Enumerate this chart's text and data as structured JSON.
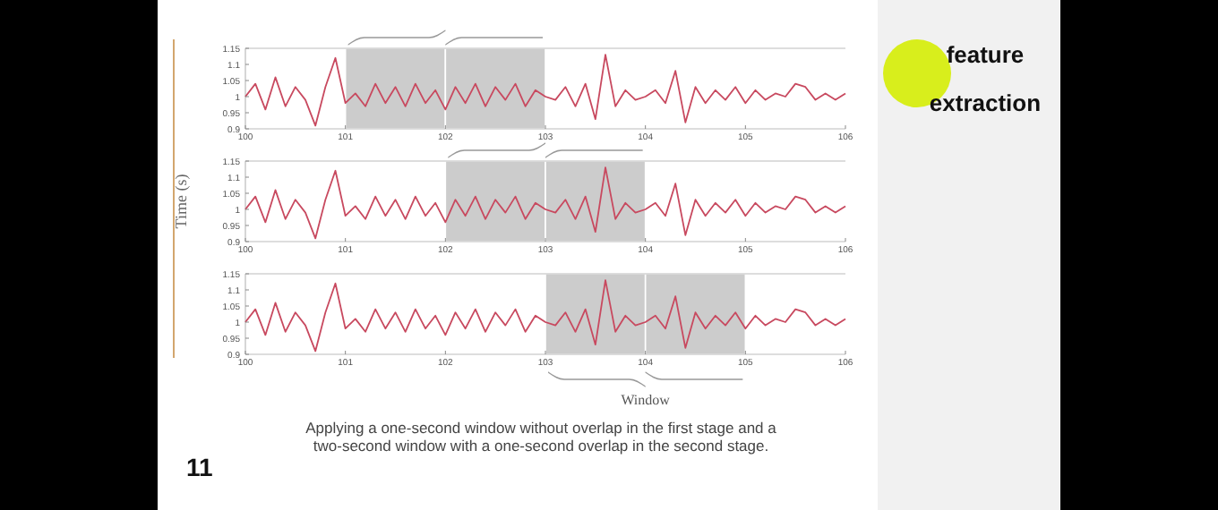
{
  "chart_data": [
    {
      "type": "line",
      "x": [
        100,
        100.1,
        100.2,
        100.3,
        100.4,
        100.5,
        100.6,
        100.7,
        100.8,
        100.9,
        101,
        101.1,
        101.2,
        101.3,
        101.4,
        101.5,
        101.6,
        101.7,
        101.8,
        101.9,
        102,
        102.1,
        102.2,
        102.3,
        102.4,
        102.5,
        102.6,
        102.7,
        102.8,
        102.9,
        103,
        103.1,
        103.2,
        103.3,
        103.4,
        103.5,
        103.6,
        103.7,
        103.8,
        103.9,
        104,
        104.1,
        104.2,
        104.3,
        104.4,
        104.5,
        104.6,
        104.7,
        104.8,
        104.9,
        105,
        105.1,
        105.2,
        105.3,
        105.4,
        105.5,
        105.6,
        105.7,
        105.8,
        105.9,
        106
      ],
      "series": [
        {
          "color": "#c8495f",
          "values": [
            1,
            1.04,
            0.96,
            1.06,
            0.97,
            1.03,
            0.99,
            0.91,
            1.03,
            1.12,
            0.98,
            1.01,
            0.97,
            1.04,
            0.98,
            1.03,
            0.97,
            1.04,
            0.98,
            1.02,
            0.96,
            1.03,
            0.98,
            1.04,
            0.97,
            1.03,
            0.99,
            1.04,
            0.97,
            1.02,
            1,
            0.99,
            1.03,
            0.97,
            1.04,
            0.93,
            1.13,
            0.97,
            1.02,
            0.99,
            1,
            1.02,
            0.98,
            1.08,
            0.92,
            1.03,
            0.98,
            1.02,
            0.99,
            1.03,
            0.98,
            1.02,
            0.99,
            1.01,
            1,
            1.04,
            1.03,
            0.99,
            1.01,
            0.99,
            1.01
          ]
        }
      ],
      "xlim": [
        100,
        106
      ],
      "xticks": [
        100,
        101,
        102,
        103,
        104,
        105,
        106
      ],
      "ylim": [
        0.9,
        1.15
      ],
      "yticks": [
        0.9,
        0.95,
        1,
        1.05,
        1.1,
        1.15
      ],
      "bands": [
        {
          "axis": "x",
          "from": 101,
          "to": 102,
          "color": "#cccccc"
        },
        {
          "axis": "x",
          "from": 102,
          "to": 103,
          "color": "#cccccc"
        }
      ]
    },
    {
      "type": "line",
      "ylabel": "Time (s)",
      "x": [
        100,
        100.1,
        100.2,
        100.3,
        100.4,
        100.5,
        100.6,
        100.7,
        100.8,
        100.9,
        101,
        101.1,
        101.2,
        101.3,
        101.4,
        101.5,
        101.6,
        101.7,
        101.8,
        101.9,
        102,
        102.1,
        102.2,
        102.3,
        102.4,
        102.5,
        102.6,
        102.7,
        102.8,
        102.9,
        103,
        103.1,
        103.2,
        103.3,
        103.4,
        103.5,
        103.6,
        103.7,
        103.8,
        103.9,
        104,
        104.1,
        104.2,
        104.3,
        104.4,
        104.5,
        104.6,
        104.7,
        104.8,
        104.9,
        105,
        105.1,
        105.2,
        105.3,
        105.4,
        105.5,
        105.6,
        105.7,
        105.8,
        105.9,
        106
      ],
      "series": [
        {
          "color": "#c8495f",
          "values": [
            1,
            1.04,
            0.96,
            1.06,
            0.97,
            1.03,
            0.99,
            0.91,
            1.03,
            1.12,
            0.98,
            1.01,
            0.97,
            1.04,
            0.98,
            1.03,
            0.97,
            1.04,
            0.98,
            1.02,
            0.96,
            1.03,
            0.98,
            1.04,
            0.97,
            1.03,
            0.99,
            1.04,
            0.97,
            1.02,
            1,
            0.99,
            1.03,
            0.97,
            1.04,
            0.93,
            1.13,
            0.97,
            1.02,
            0.99,
            1,
            1.02,
            0.98,
            1.08,
            0.92,
            1.03,
            0.98,
            1.02,
            0.99,
            1.03,
            0.98,
            1.02,
            0.99,
            1.01,
            1,
            1.04,
            1.03,
            0.99,
            1.01,
            0.99,
            1.01
          ]
        }
      ],
      "xlim": [
        100,
        106
      ],
      "xticks": [
        100,
        101,
        102,
        103,
        104,
        105,
        106
      ],
      "ylim": [
        0.9,
        1.15
      ],
      "yticks": [
        0.9,
        0.95,
        1,
        1.05,
        1.1,
        1.15
      ],
      "bands": [
        {
          "axis": "x",
          "from": 102,
          "to": 103,
          "color": "#cccccc"
        },
        {
          "axis": "x",
          "from": 103,
          "to": 104,
          "color": "#cccccc"
        }
      ]
    },
    {
      "type": "line",
      "x": [
        100,
        100.1,
        100.2,
        100.3,
        100.4,
        100.5,
        100.6,
        100.7,
        100.8,
        100.9,
        101,
        101.1,
        101.2,
        101.3,
        101.4,
        101.5,
        101.6,
        101.7,
        101.8,
        101.9,
        102,
        102.1,
        102.2,
        102.3,
        102.4,
        102.5,
        102.6,
        102.7,
        102.8,
        102.9,
        103,
        103.1,
        103.2,
        103.3,
        103.4,
        103.5,
        103.6,
        103.7,
        103.8,
        103.9,
        104,
        104.1,
        104.2,
        104.3,
        104.4,
        104.5,
        104.6,
        104.7,
        104.8,
        104.9,
        105,
        105.1,
        105.2,
        105.3,
        105.4,
        105.5,
        105.6,
        105.7,
        105.8,
        105.9,
        106
      ],
      "series": [
        {
          "color": "#c8495f",
          "values": [
            1,
            1.04,
            0.96,
            1.06,
            0.97,
            1.03,
            0.99,
            0.91,
            1.03,
            1.12,
            0.98,
            1.01,
            0.97,
            1.04,
            0.98,
            1.03,
            0.97,
            1.04,
            0.98,
            1.02,
            0.96,
            1.03,
            0.98,
            1.04,
            0.97,
            1.03,
            0.99,
            1.04,
            0.97,
            1.02,
            1,
            0.99,
            1.03,
            0.97,
            1.04,
            0.93,
            1.13,
            0.97,
            1.02,
            0.99,
            1,
            1.02,
            0.98,
            1.08,
            0.92,
            1.03,
            0.98,
            1.02,
            0.99,
            1.03,
            0.98,
            1.02,
            0.99,
            1.01,
            1,
            1.04,
            1.03,
            0.99,
            1.01,
            0.99,
            1.01
          ]
        }
      ],
      "xlim": [
        100,
        106
      ],
      "xticks": [
        100,
        101,
        102,
        103,
        104,
        105,
        106
      ],
      "ylim": [
        0.9,
        1.15
      ],
      "yticks": [
        0.9,
        0.95,
        1,
        1.05,
        1.1,
        1.15
      ],
      "bands": [
        {
          "axis": "x",
          "from": 103,
          "to": 104,
          "color": "#cccccc"
        },
        {
          "axis": "x",
          "from": 104,
          "to": 105,
          "color": "#cccccc"
        }
      ],
      "annotations": [
        "Window",
        "Applying a one-second window without overlap in the first stage and a two-second window with a one-second overlap in the second stage.",
        "11",
        "feature extraction"
      ]
    }
  ]
}
